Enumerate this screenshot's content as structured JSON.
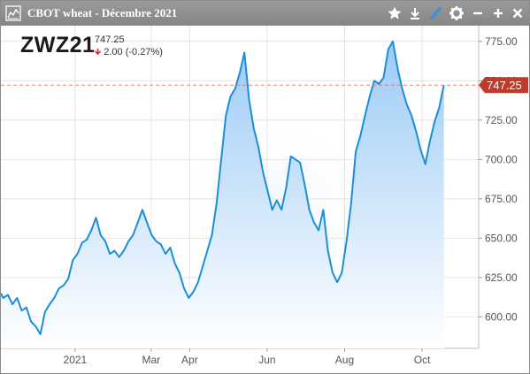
{
  "window": {
    "title": "CBOT wheat - Décembre 2021",
    "icons": [
      "chart-icon",
      "star-icon",
      "download-icon",
      "pencil-icon",
      "gear-icon",
      "minimize-icon",
      "add-icon",
      "close-icon"
    ]
  },
  "quote": {
    "symbol": "ZWZ21",
    "last": "747.25",
    "change": "2.00",
    "change_pct": "(-0.27%)",
    "direction": "down",
    "last_label": "747.25"
  },
  "colors": {
    "line": "#1a8fd8",
    "fill_top": "#9ccbf6",
    "fill_bottom": "#ffffff",
    "last_price_tag": "#c0392b",
    "last_price_line": "#d9826f",
    "down": "#d8282d"
  },
  "chart_data": {
    "type": "area",
    "yticks": [
      "775.00",
      "750.00",
      "725.00",
      "700.00",
      "675.00",
      "650.00",
      "625.00",
      "600.00"
    ],
    "ytick_values": [
      775,
      750,
      725,
      700,
      675,
      650,
      625,
      600
    ],
    "ylim": [
      580,
      785
    ],
    "xticks": [
      "2021",
      "Mar",
      "Apr",
      "Jun",
      "Aug",
      "Oct"
    ],
    "xtick_values": [
      2021.0,
      2021.164,
      2021.247,
      2021.414,
      2021.581,
      2021.748
    ],
    "xlim": [
      2020.84,
      2021.87
    ],
    "grid": true,
    "series": [
      {
        "x": [
          2020.84,
          2020.845,
          2020.855,
          2020.865,
          2020.875,
          2020.885,
          2020.895,
          2020.905,
          2020.915,
          2020.925,
          2020.935,
          2020.945,
          2020.955,
          2020.965,
          2020.975,
          2020.985,
          2020.995,
          2021.005,
          2021.015,
          2021.025,
          2021.035,
          2021.045,
          2021.055,
          2021.065,
          2021.075,
          2021.085,
          2021.095,
          2021.105,
          2021.115,
          2021.125,
          2021.135,
          2021.145,
          2021.155,
          2021.165,
          2021.175,
          2021.185,
          2021.195,
          2021.205,
          2021.215,
          2021.225,
          2021.235,
          2021.245,
          2021.255,
          2021.265,
          2021.275,
          2021.285,
          2021.295,
          2021.305,
          2021.315,
          2021.325,
          2021.335,
          2021.345,
          2021.355,
          2021.365,
          2021.375,
          2021.385,
          2021.395,
          2021.405,
          2021.415,
          2021.425,
          2021.435,
          2021.445,
          2021.455,
          2021.465,
          2021.475,
          2021.485,
          2021.495,
          2021.505,
          2021.515,
          2021.525,
          2021.535,
          2021.545,
          2021.555,
          2021.565,
          2021.575,
          2021.585,
          2021.595,
          2021.605,
          2021.615,
          2021.625,
          2021.635,
          2021.645,
          2021.655,
          2021.665,
          2021.675,
          2021.685,
          2021.695,
          2021.705,
          2021.715,
          2021.725,
          2021.735,
          2021.745,
          2021.755,
          2021.765,
          2021.775,
          2021.785,
          2021.795
        ],
        "y": [
          615,
          612,
          614,
          608,
          612,
          604,
          606,
          597,
          594,
          589,
          603,
          608,
          612,
          618,
          620,
          624,
          636,
          640,
          647,
          649,
          655,
          663,
          652,
          648,
          640,
          642,
          638,
          642,
          648,
          652,
          660,
          668,
          660,
          652,
          648,
          646,
          640,
          644,
          634,
          628,
          618,
          612,
          616,
          622,
          632,
          642,
          652,
          672,
          700,
          728,
          740,
          745,
          755,
          768,
          738,
          720,
          708,
          692,
          680,
          668,
          674,
          668,
          682,
          702,
          700,
          698,
          684,
          668,
          660,
          655,
          668,
          642,
          628,
          622,
          628,
          648,
          672,
          705,
          715,
          728,
          740,
          750,
          748,
          752,
          770,
          775,
          758,
          745,
          735,
          728,
          718,
          706,
          697,
          712,
          724,
          733,
          747.25
        ]
      }
    ],
    "last_value": 747.25
  }
}
